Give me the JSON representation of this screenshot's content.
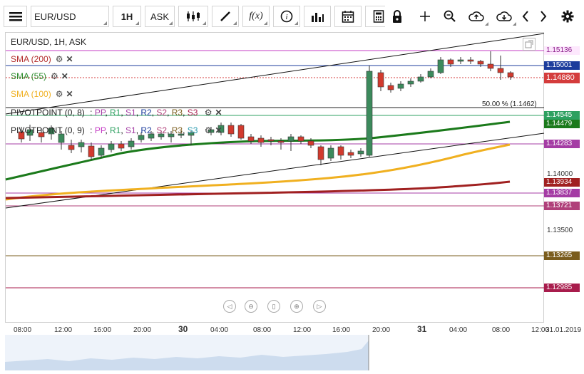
{
  "toolbar": {
    "menu_icon": "menu-icon",
    "symbol": "EUR/USD",
    "timeframe": "1H",
    "price_type": "ASK",
    "icons": [
      "candles-icon",
      "draw-icon",
      "function-icon",
      "info-icon",
      "volume-icon",
      "calendar-icon",
      "calculator-icon",
      "lock-icon",
      "crosshair-icon",
      "zoom-icon",
      "upload-icon",
      "download-icon",
      "prev-icon",
      "next-icon",
      "settings-icon"
    ]
  },
  "chart": {
    "title": "EUR/USD, 1H, ASK",
    "fib_label": "50.00 % (1.1462)",
    "indicators": [
      {
        "label": "SMA (200)",
        "color": "#b22a2a"
      },
      {
        "label": "SMA (55)",
        "color": "#2a8a2a"
      },
      {
        "label": "SMA (100)",
        "color": "#f0b020"
      }
    ],
    "pivot1": {
      "name": "PIVOTPOINT (0, 8)",
      "sep": ":",
      "items": [
        "PP",
        "R1",
        "S1",
        "R2",
        "S2",
        "R3",
        "S3"
      ]
    },
    "pivot2": {
      "name": "PIVOTPOINT (0, 9)",
      "sep": ":",
      "items": [
        "PP",
        "R1",
        "S1",
        "R2",
        "S2",
        "R3",
        "S3"
      ]
    }
  },
  "price_labels": [
    {
      "text": "1.15136",
      "bg": "#fde8fd",
      "fg": "#8a1c8a"
    },
    {
      "text": "1.15001",
      "bg": "#1c3c9c",
      "fg": "#ffffff"
    },
    {
      "text": "1.14880",
      "bg": "#d43c3c",
      "fg": "#ffffff"
    },
    {
      "text": "1.14545",
      "bg": "#2da060",
      "fg": "#ffffff"
    },
    {
      "text": "1.14479",
      "bg": "#1b7a1b",
      "fg": "#ffffff"
    },
    {
      "text": "1.14283",
      "bg": "#a43ca4",
      "fg": "#ffffff"
    },
    {
      "text": "1.13934",
      "bg": "#a02020",
      "fg": "#ffffff"
    },
    {
      "text": "1.13837",
      "bg": "#a43ca4",
      "fg": "#ffffff"
    },
    {
      "text": "1.13721",
      "bg": "#b0407a",
      "fg": "#ffffff"
    },
    {
      "text": "1.13265",
      "bg": "#7a5c1c",
      "fg": "#ffffff"
    },
    {
      "text": "1.12985",
      "bg": "#a81c4c",
      "fg": "#ffffff"
    }
  ],
  "y_ticks": [
    "1.14000",
    "1.13500"
  ],
  "x_ticks": [
    "08:00",
    "12:00",
    "16:00",
    "20:00",
    "30",
    "04:00",
    "08:00",
    "12:00",
    "16:00",
    "20:00",
    "31",
    "04:00",
    "08:00",
    "12:00"
  ],
  "x_date_label": "31.01.2019",
  "nav_icons": [
    "scroll-left-icon",
    "zoom-out-icon",
    "fit-icon",
    "zoom-in-icon",
    "scroll-right-icon"
  ]
}
